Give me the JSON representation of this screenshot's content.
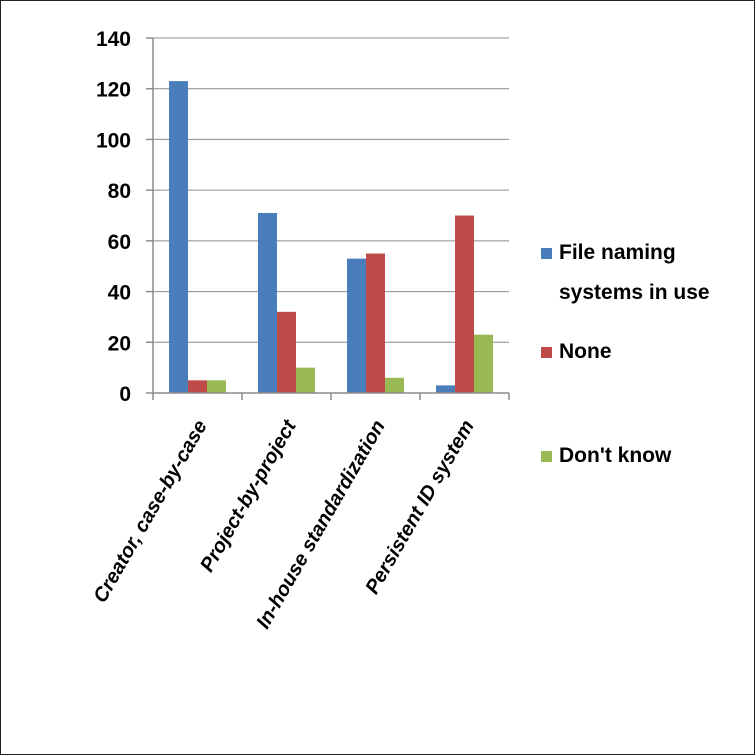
{
  "chart_data": {
    "type": "bar",
    "title": "",
    "xlabel": "",
    "ylabel": "",
    "categories": [
      "Creator, case-by-case",
      "Project-by-project",
      "In-house standardization",
      "Persistent ID system"
    ],
    "series": [
      {
        "name": "File naming systems in use",
        "legend_lines": [
          "File naming",
          "systems in use"
        ],
        "color": "#4A7EBB",
        "values": [
          123,
          71,
          53,
          3
        ]
      },
      {
        "name": "None",
        "legend_lines": [
          "None"
        ],
        "color": "#BE4B48",
        "values": [
          5,
          32,
          55,
          70
        ]
      },
      {
        "name": "Don't know",
        "legend_lines": [
          "Don't know"
        ],
        "color": "#98B954",
        "values": [
          5,
          10,
          6,
          23
        ]
      }
    ],
    "ylim": [
      0,
      140
    ],
    "yticks": [
      0,
      20,
      40,
      60,
      80,
      100,
      120,
      140
    ],
    "grid": true,
    "legend_position": "right"
  }
}
